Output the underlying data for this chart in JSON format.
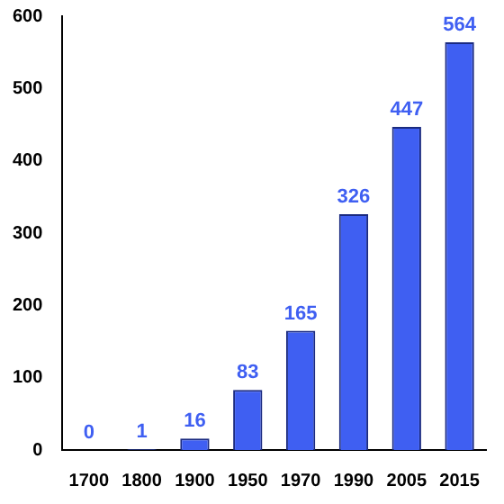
{
  "chart_data": {
    "type": "bar",
    "categories": [
      "1700",
      "1800",
      "1900",
      "1950",
      "1970",
      "1990",
      "2005",
      "2015"
    ],
    "series": [
      {
        "color": "#3f5ff2",
        "values": [
          0,
          1,
          16,
          83,
          165,
          326,
          447,
          564
        ]
      }
    ],
    "ylim": [
      0,
      600
    ],
    "yticks": [
      0,
      100,
      200,
      300,
      400,
      500,
      600
    ],
    "grid": false,
    "legend": false,
    "data_labels": true
  }
}
